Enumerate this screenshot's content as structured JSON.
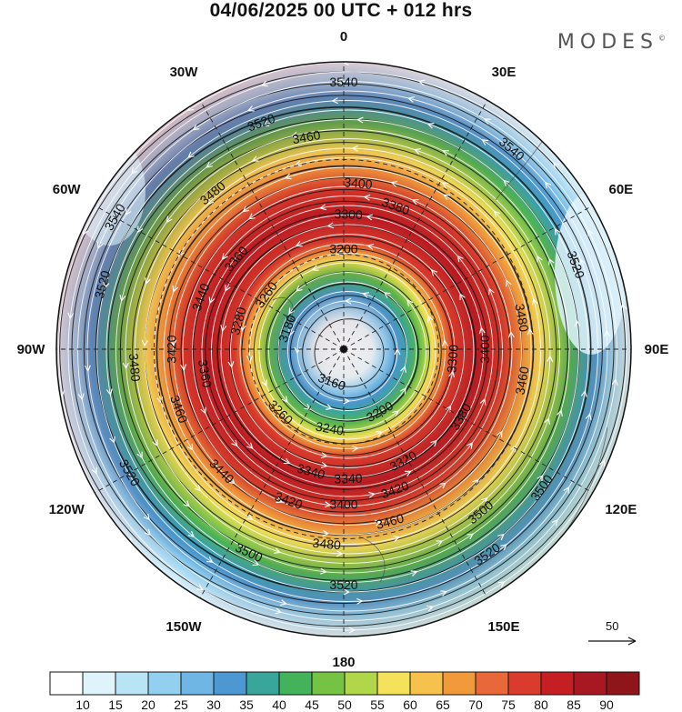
{
  "header": {
    "title": "04/06/2025  00 UTC  + 012 hrs",
    "brand": "MODES",
    "brand_mark": "©"
  },
  "map": {
    "projection": "polar-stereographic",
    "pole": "south",
    "longitude_labels": [
      {
        "lon": "0",
        "deg": 0
      },
      {
        "lon": "30E",
        "deg": 30
      },
      {
        "lon": "60E",
        "deg": 60
      },
      {
        "lon": "90E",
        "deg": 90
      },
      {
        "lon": "120E",
        "deg": 120
      },
      {
        "lon": "150E",
        "deg": 150
      },
      {
        "lon": "180",
        "deg": 180
      },
      {
        "lon": "150W",
        "deg": 210
      },
      {
        "lon": "120W",
        "deg": 240
      },
      {
        "lon": "90W",
        "deg": 270
      },
      {
        "lon": "60W",
        "deg": 300
      },
      {
        "lon": "30W",
        "deg": 330
      }
    ],
    "contour_labels": [
      {
        "text": "3540",
        "deg": 0,
        "r": 0.93
      },
      {
        "text": "3540",
        "deg": 40,
        "r": 0.91
      },
      {
        "text": "3540",
        "deg": 300,
        "r": 0.92
      },
      {
        "text": "3520",
        "deg": 340,
        "r": 0.84
      },
      {
        "text": "3520",
        "deg": 70,
        "r": 0.86
      },
      {
        "text": "3520",
        "deg": 285,
        "r": 0.87
      },
      {
        "text": "3520",
        "deg": 240,
        "r": 0.86
      },
      {
        "text": "3520",
        "deg": 145,
        "r": 0.87
      },
      {
        "text": "3520",
        "deg": 180,
        "r": 0.82
      },
      {
        "text": "3500",
        "deg": 125,
        "r": 0.84
      },
      {
        "text": "3500",
        "deg": 205,
        "r": 0.78
      },
      {
        "text": "3500",
        "deg": 140,
        "r": 0.74
      },
      {
        "text": "3480",
        "deg": 320,
        "r": 0.71
      },
      {
        "text": "3480",
        "deg": 265,
        "r": 0.73
      },
      {
        "text": "3480",
        "deg": 80,
        "r": 0.63
      },
      {
        "text": "3480",
        "deg": 185,
        "r": 0.68
      },
      {
        "text": "3460",
        "deg": 350,
        "r": 0.75
      },
      {
        "text": "3460",
        "deg": 250,
        "r": 0.61
      },
      {
        "text": "3460",
        "deg": 100,
        "r": 0.63
      },
      {
        "text": "3460",
        "deg": 165,
        "r": 0.62
      },
      {
        "text": "3440",
        "deg": 225,
        "r": 0.6
      },
      {
        "text": "3440",
        "deg": 290,
        "r": 0.53
      },
      {
        "text": "3420",
        "deg": 270,
        "r": 0.6
      },
      {
        "text": "3420",
        "deg": 200,
        "r": 0.56
      },
      {
        "text": "3420",
        "deg": 160,
        "r": 0.52
      },
      {
        "text": "3400",
        "deg": 5,
        "r": 0.58
      },
      {
        "text": "3400",
        "deg": 90,
        "r": 0.49
      },
      {
        "text": "3400",
        "deg": 180,
        "r": 0.54
      },
      {
        "text": "3380",
        "deg": 20,
        "r": 0.53
      },
      {
        "text": "3380",
        "deg": 120,
        "r": 0.47
      },
      {
        "text": "3360",
        "deg": 260,
        "r": 0.49
      },
      {
        "text": "3360",
        "deg": 310,
        "r": 0.49
      },
      {
        "text": "3340",
        "deg": 195,
        "r": 0.44
      },
      {
        "text": "3340",
        "deg": 178,
        "r": 0.45
      },
      {
        "text": "3320",
        "deg": 152,
        "r": 0.44
      },
      {
        "text": "3300",
        "deg": 2,
        "r": 0.47
      },
      {
        "text": "3300",
        "deg": 95,
        "r": 0.38
      },
      {
        "text": "3280",
        "deg": 285,
        "r": 0.38
      },
      {
        "text": "3260",
        "deg": 305,
        "r": 0.33
      },
      {
        "text": "3260",
        "deg": 225,
        "r": 0.31
      },
      {
        "text": "3240",
        "deg": 190,
        "r": 0.28
      },
      {
        "text": "3200",
        "deg": 0,
        "r": 0.35
      },
      {
        "text": "3200",
        "deg": 150,
        "r": 0.25
      },
      {
        "text": "3180",
        "deg": 290,
        "r": 0.21
      },
      {
        "text": "3160",
        "deg": 200,
        "r": 0.12
      }
    ]
  },
  "colorbar": {
    "colors": [
      "#ffffff",
      "#dff3fb",
      "#b9e4f6",
      "#93d0f0",
      "#6fb6e4",
      "#4b98d3",
      "#3aa59b",
      "#44b25a",
      "#76c245",
      "#b2d64a",
      "#f4e25a",
      "#f6c24d",
      "#f09a3c",
      "#e8683a",
      "#d93c2c",
      "#c51f24",
      "#a81822",
      "#8e1519"
    ],
    "ticks": [
      "10",
      "15",
      "20",
      "25",
      "30",
      "35",
      "40",
      "45",
      "50",
      "55",
      "60",
      "65",
      "70",
      "75",
      "80",
      "85",
      "90"
    ]
  },
  "legend": {
    "reference_vector_label": "50"
  }
}
